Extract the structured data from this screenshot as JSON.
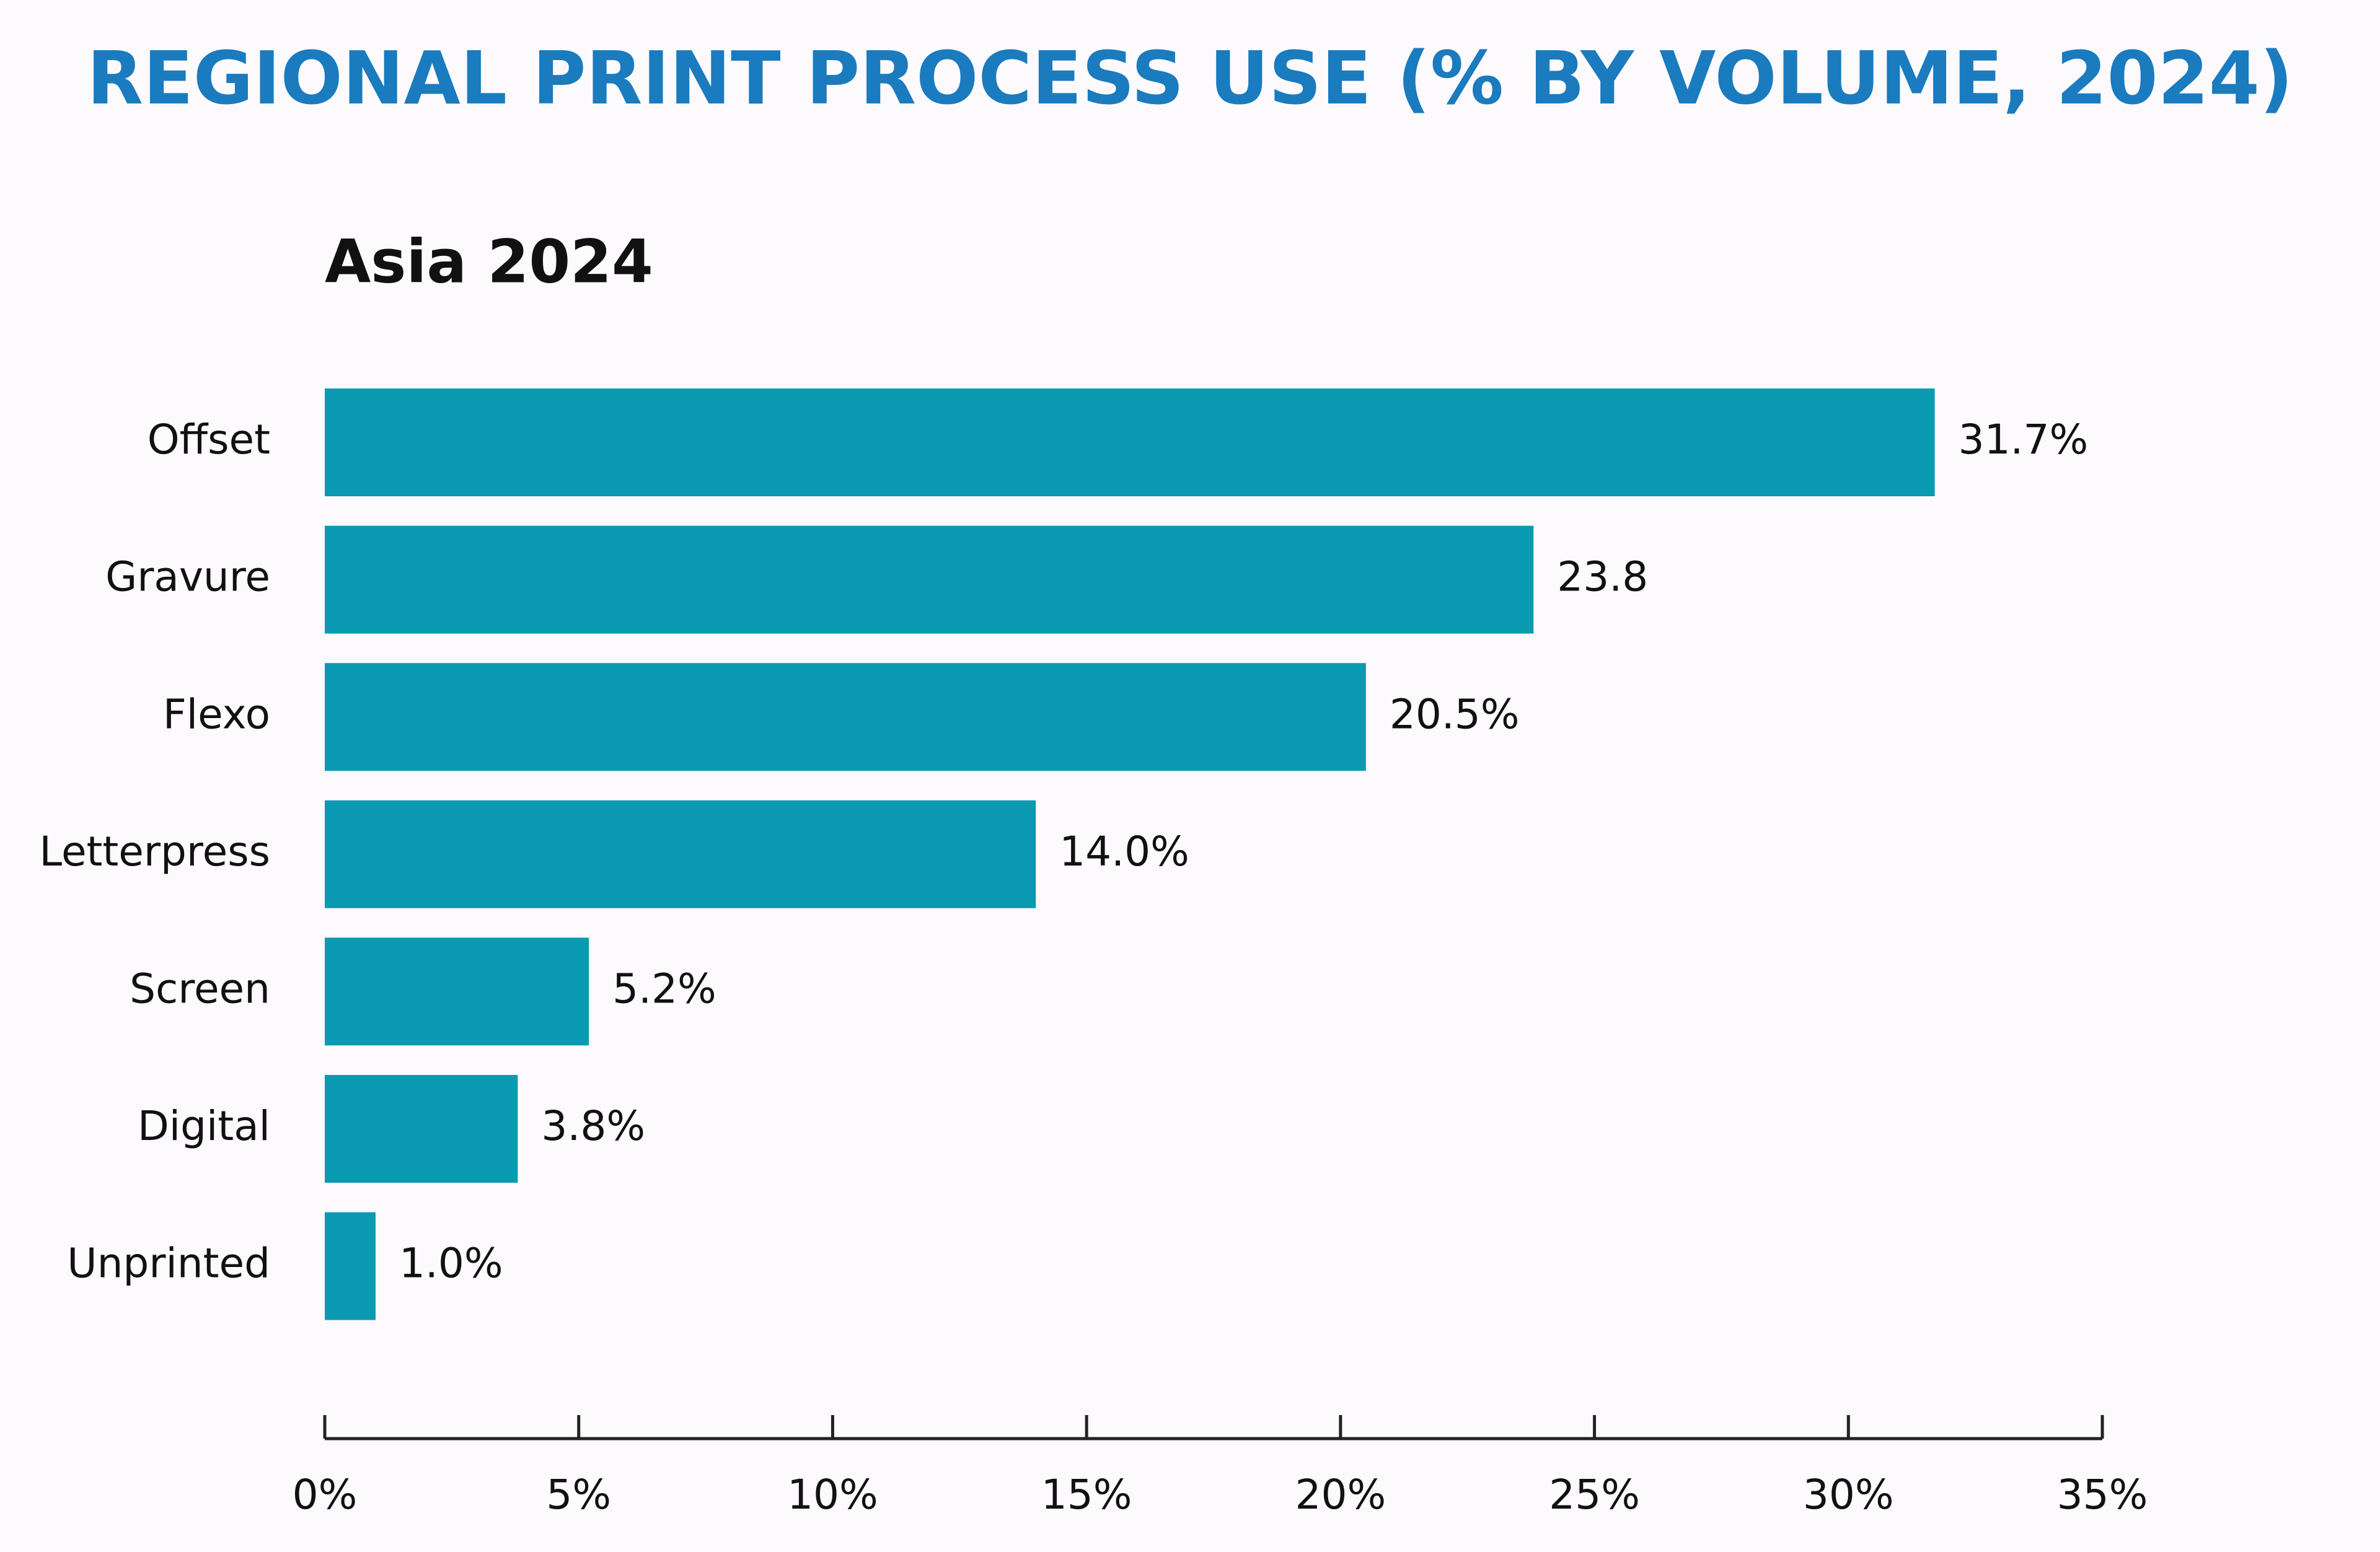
{
  "chart_data": {
    "type": "bar",
    "orientation": "horizontal",
    "title": "REGIONAL PRINT PROCESS USE (% BY VOLUME, 2024)",
    "subtitle": "Asia 2024",
    "categories": [
      "Offset",
      "Gravure",
      "Flexo",
      "Letterpress",
      "Screen",
      "Digital",
      "Unprinted"
    ],
    "values": [
      31.7,
      23.8,
      20.5,
      14.0,
      5.2,
      3.8,
      1.0
    ],
    "value_labels": [
      "31.7%",
      "23.8",
      "20.5%",
      "14.0%",
      "5.2%",
      "3.8%",
      "1.0%"
    ],
    "color": "#0a9bb2",
    "xlim": [
      0,
      35
    ],
    "xticks": [
      {
        "value": 0,
        "label": "0%"
      },
      {
        "value": 5,
        "label": "5%"
      },
      {
        "value": 10,
        "label": "10%"
      },
      {
        "value": 15,
        "label": "15%"
      },
      {
        "value": 20,
        "label": "20%"
      },
      {
        "value": 25,
        "label": "25%"
      },
      {
        "value": 30,
        "label": "30%"
      },
      {
        "value": 35,
        "label": "35%"
      }
    ],
    "grid": false
  }
}
